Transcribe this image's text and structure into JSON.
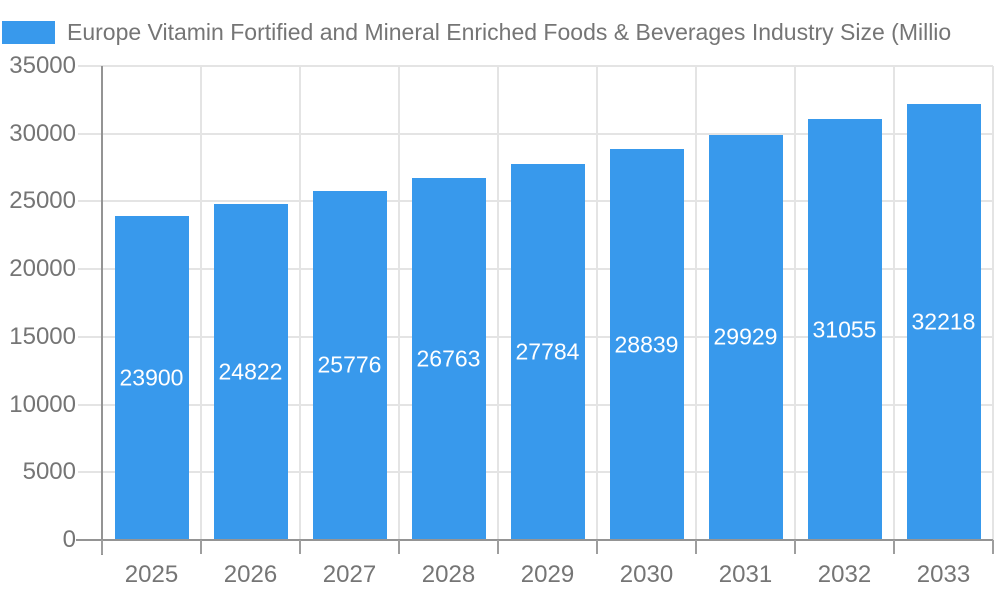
{
  "chart_data": {
    "type": "bar",
    "title": "Europe Vitamin Fortified and Mineral Enriched Foods & Beverages Industry Size (Millio",
    "categories": [
      "2025",
      "2026",
      "2027",
      "2028",
      "2029",
      "2030",
      "2031",
      "2032",
      "2033"
    ],
    "values": [
      23900,
      24822,
      25776,
      26763,
      27784,
      28839,
      29929,
      31055,
      32218
    ],
    "value_labels": [
      "23900",
      "24822",
      "25776",
      "26763",
      "27784",
      "28839",
      "29929",
      "31055",
      "32218"
    ],
    "xlabel": "",
    "ylabel": "",
    "ylim": [
      0,
      35000
    ],
    "ytick_step": 5000,
    "yticks": [
      0,
      5000,
      10000,
      15000,
      20000,
      25000,
      30000,
      35000
    ],
    "grid": true,
    "legend_position": "top-left",
    "colors": {
      "bar": "#3899EC",
      "grid_line": "#E4E4E4",
      "axis_line": "#949494",
      "tick_mark": "#9E9E9E",
      "axis_label": "#757575",
      "title_text": "#757575",
      "value_label": "#FFFFFF",
      "background": "#FFFFFF"
    }
  }
}
